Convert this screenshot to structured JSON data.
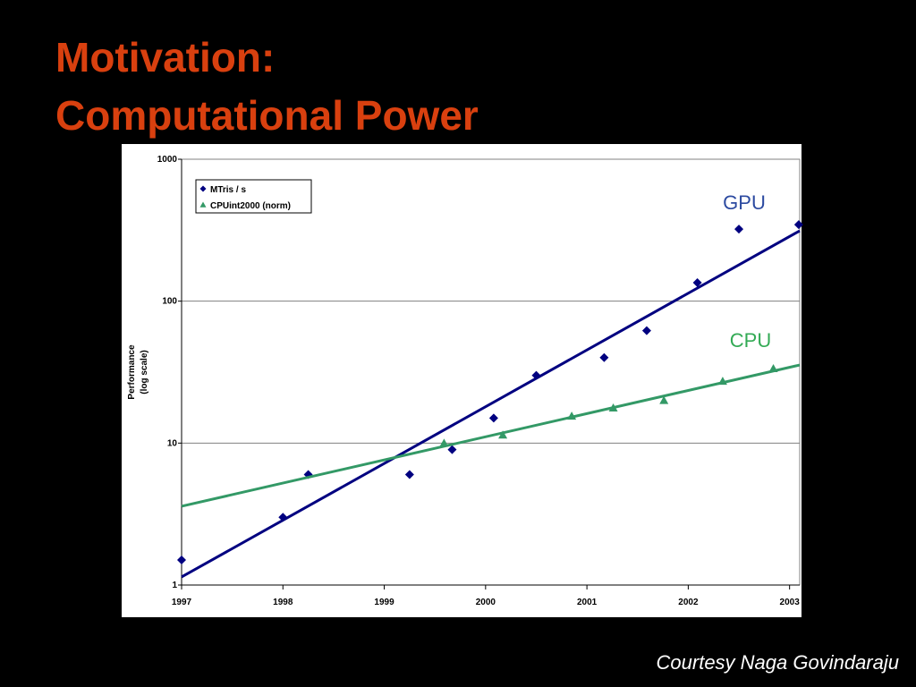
{
  "title": [
    "Motivation:",
    "Computational Power"
  ],
  "credit": "Courtesy Naga Govindaraju",
  "chart_data": {
    "type": "scatter",
    "ylabel": [
      "Performance",
      "(log scale)"
    ],
    "xlim": [
      1997,
      2003.1
    ],
    "xticks": [
      1997,
      1998,
      1999,
      2000,
      2001,
      2002,
      2003
    ],
    "ylim": [
      1,
      1000
    ],
    "yticks": [
      1,
      10,
      100,
      1000
    ],
    "log_y": true,
    "grid": true,
    "legend": "upper left",
    "series": [
      {
        "name": "MTris / s",
        "color": "#000080",
        "marker": "diamond",
        "x": [
          1997.0,
          1998.0,
          1998.25,
          1999.25,
          1999.67,
          2000.08,
          2000.5,
          2001.17,
          2001.59,
          2002.09,
          2002.5,
          2003.09
        ],
        "values": [
          1.5,
          3,
          6,
          6,
          9,
          15,
          30,
          40,
          62,
          135,
          322,
          346
        ],
        "trendline": {
          "x": [
            1997,
            2003.1
          ],
          "values": [
            1.14,
            313
          ]
        }
      },
      {
        "name": "CPUint2000 (norm)",
        "color": "#339966",
        "marker": "triangle",
        "x": [
          1999.59,
          2000.17,
          2000.85,
          2001.26,
          2001.76,
          2002.34,
          2002.84
        ],
        "values": [
          10,
          11.4,
          15.5,
          17.7,
          20,
          27.3,
          33.5
        ],
        "trendline": {
          "x": [
            1997,
            2003.1
          ],
          "values": [
            3.59,
            35.5
          ]
        }
      }
    ],
    "annotations": [
      {
        "text": "GPU",
        "color": "#2c4aa0"
      },
      {
        "text": "CPU",
        "color": "#33aa55"
      }
    ]
  }
}
